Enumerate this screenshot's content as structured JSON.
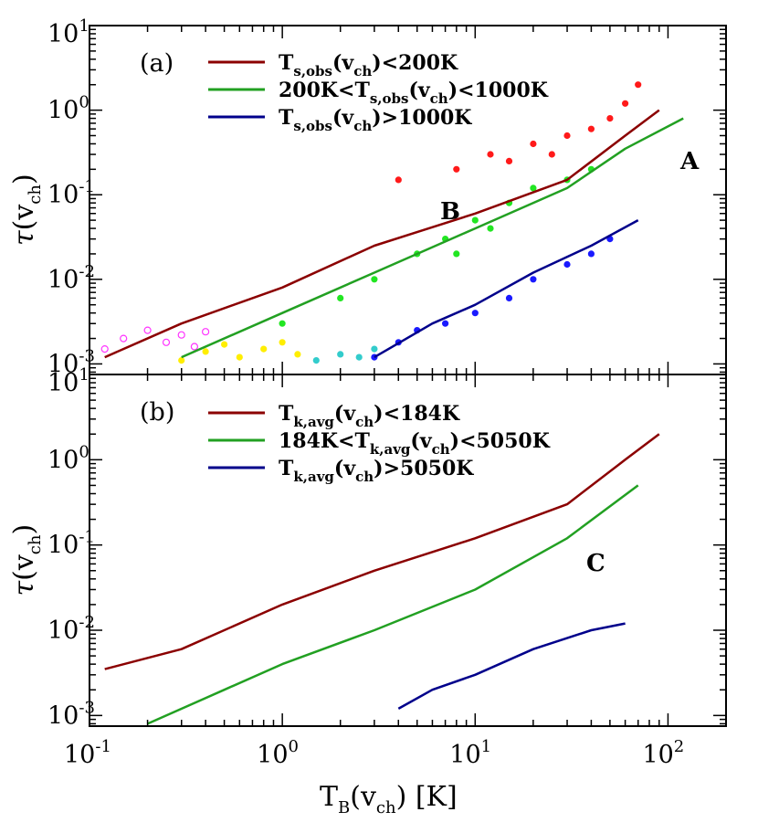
{
  "chart_data": [
    {
      "panel_label": "(a)",
      "type": "line",
      "x_scale": "log",
      "y_scale": "log",
      "xlim": [
        0.1,
        200
      ],
      "ylim": [
        0.00075,
        10
      ],
      "xlabel": "",
      "ylabel": "τ(v_ch)",
      "ylabel_main": "τ",
      "ylabel_sub": "ch",
      "y_ticks": [
        {
          "base": "10",
          "exp": "1"
        },
        {
          "base": "10",
          "exp": "0"
        },
        {
          "base": "10",
          "exp": "-1"
        },
        {
          "base": "10",
          "exp": "-2"
        },
        {
          "base": "10",
          "exp": "-3"
        }
      ],
      "legend": [
        {
          "color": "#8b0000",
          "pre": "T",
          "sub": "s,obs",
          "mid": "(v",
          "sub2": "ch",
          "post": ")<200K"
        },
        {
          "color": "#22a022",
          "pre": "200K<T",
          "sub": "s,obs",
          "mid": "(v",
          "sub2": "ch",
          "post": ")<1000K"
        },
        {
          "color": "#00008b",
          "pre": "T",
          "sub": "s,obs",
          "mid": "(v",
          "sub2": "ch",
          "post": ")>1000K"
        }
      ],
      "annotations": [
        "A",
        "B"
      ],
      "series": [
        {
          "color": "#8b0000",
          "points": [
            [
              0.12,
              0.0012
            ],
            [
              0.3,
              0.003
            ],
            [
              1,
              0.008
            ],
            [
              3,
              0.025
            ],
            [
              10,
              0.06
            ],
            [
              30,
              0.15
            ],
            [
              60,
              0.5
            ],
            [
              90,
              1
            ]
          ]
        },
        {
          "color": "#22a022",
          "points": [
            [
              0.3,
              0.0012
            ],
            [
              1,
              0.004
            ],
            [
              3,
              0.012
            ],
            [
              10,
              0.04
            ],
            [
              30,
              0.12
            ],
            [
              60,
              0.35
            ],
            [
              120,
              0.8
            ]
          ]
        },
        {
          "color": "#00008b",
          "points": [
            [
              3,
              0.0012
            ],
            [
              6,
              0.003
            ],
            [
              10,
              0.005
            ],
            [
              20,
              0.012
            ],
            [
              40,
              0.025
            ],
            [
              70,
              0.05
            ]
          ]
        }
      ],
      "scatter_groups": [
        {
          "color": "#ff1a1a",
          "points": [
            [
              4,
              0.15
            ],
            [
              8,
              0.2
            ],
            [
              12,
              0.3
            ],
            [
              20,
              0.4
            ],
            [
              30,
              0.5
            ],
            [
              40,
              0.6
            ],
            [
              50,
              0.8
            ],
            [
              60,
              1.2
            ],
            [
              70,
              2
            ],
            [
              25,
              0.3
            ],
            [
              15,
              0.25
            ]
          ]
        },
        {
          "color": "#22e622",
          "points": [
            [
              1,
              0.003
            ],
            [
              2,
              0.006
            ],
            [
              3,
              0.01
            ],
            [
              5,
              0.02
            ],
            [
              7,
              0.03
            ],
            [
              10,
              0.05
            ],
            [
              15,
              0.08
            ],
            [
              20,
              0.12
            ],
            [
              30,
              0.15
            ],
            [
              40,
              0.2
            ],
            [
              12,
              0.04
            ],
            [
              8,
              0.02
            ]
          ]
        },
        {
          "color": "#1a1aff",
          "points": [
            [
              3,
              0.0012
            ],
            [
              4,
              0.0018
            ],
            [
              5,
              0.0025
            ],
            [
              7,
              0.003
            ],
            [
              10,
              0.004
            ],
            [
              15,
              0.006
            ],
            [
              20,
              0.01
            ],
            [
              30,
              0.015
            ],
            [
              40,
              0.02
            ],
            [
              50,
              0.03
            ]
          ]
        },
        {
          "color": "#ff33ff",
          "points": [
            [
              0.12,
              0.0015
            ],
            [
              0.15,
              0.002
            ],
            [
              0.2,
              0.0025
            ],
            [
              0.25,
              0.0018
            ],
            [
              0.3,
              0.0022
            ],
            [
              0.35,
              0.0016
            ],
            [
              0.4,
              0.0024
            ]
          ]
        },
        {
          "color": "#ffee00",
          "points": [
            [
              0.3,
              0.0011
            ],
            [
              0.4,
              0.0014
            ],
            [
              0.5,
              0.0017
            ],
            [
              0.6,
              0.0012
            ],
            [
              0.8,
              0.0015
            ],
            [
              1,
              0.0018
            ],
            [
              1.2,
              0.0013
            ]
          ]
        },
        {
          "color": "#33cccc",
          "points": [
            [
              1.5,
              0.0011
            ],
            [
              2,
              0.0013
            ],
            [
              2.5,
              0.0012
            ],
            [
              3,
              0.0015
            ]
          ]
        }
      ]
    },
    {
      "panel_label": "(b)",
      "type": "line",
      "x_scale": "log",
      "y_scale": "log",
      "xlim": [
        0.1,
        200
      ],
      "ylim": [
        0.00075,
        10
      ],
      "xlabel": "T_B(v_ch) [K]",
      "xlabel_main": "T",
      "xlabel_sub": "B",
      "xlabel_mid": "(v",
      "xlabel_sub2": "ch",
      "xlabel_post": ")  [K]",
      "ylabel": "τ(v_ch)",
      "ylabel_main": "τ",
      "ylabel_sub": "ch",
      "x_ticks": [
        {
          "base": "10",
          "exp": "-1"
        },
        {
          "base": "10",
          "exp": "0"
        },
        {
          "base": "10",
          "exp": "1"
        },
        {
          "base": "10",
          "exp": "2"
        }
      ],
      "y_ticks": [
        {
          "base": "10",
          "exp": "1"
        },
        {
          "base": "10",
          "exp": "0"
        },
        {
          "base": "10",
          "exp": "-1"
        },
        {
          "base": "10",
          "exp": "-2"
        },
        {
          "base": "10",
          "exp": "-3"
        }
      ],
      "legend": [
        {
          "color": "#8b0000",
          "pre": "T",
          "sub": "k,avg",
          "mid": "(v",
          "sub2": "ch",
          "post": ")<184K"
        },
        {
          "color": "#22a022",
          "pre": "184K<T",
          "sub": "k,avg",
          "mid": "(v",
          "sub2": "ch",
          "post": ")<5050K"
        },
        {
          "color": "#00008b",
          "pre": "T",
          "sub": "k,avg",
          "mid": "(v",
          "sub2": "ch",
          "post": ")>5050K"
        }
      ],
      "annotations": [
        "C"
      ],
      "series": [
        {
          "color": "#8b0000",
          "points": [
            [
              0.12,
              0.0035
            ],
            [
              0.3,
              0.006
            ],
            [
              1,
              0.02
            ],
            [
              3,
              0.05
            ],
            [
              10,
              0.12
            ],
            [
              30,
              0.3
            ],
            [
              60,
              1
            ],
            [
              90,
              2
            ]
          ]
        },
        {
          "color": "#22a022",
          "points": [
            [
              0.2,
              0.0008
            ],
            [
              0.5,
              0.002
            ],
            [
              1,
              0.004
            ],
            [
              3,
              0.01
            ],
            [
              10,
              0.03
            ],
            [
              30,
              0.12
            ],
            [
              70,
              0.5
            ]
          ]
        },
        {
          "color": "#00008b",
          "points": [
            [
              4,
              0.0012
            ],
            [
              6,
              0.002
            ],
            [
              10,
              0.003
            ],
            [
              20,
              0.006
            ],
            [
              40,
              0.01
            ],
            [
              60,
              0.012
            ]
          ]
        }
      ],
      "scatter_groups": []
    }
  ]
}
